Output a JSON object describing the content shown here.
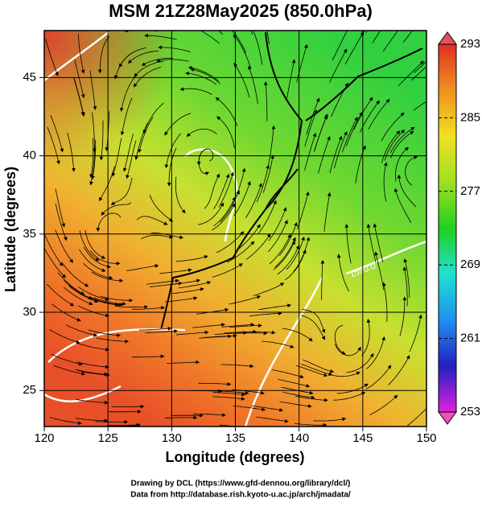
{
  "map": {
    "title": "MSM 21Z28May2025 (850.0hPa)",
    "xlabel": "Longitude (degrees)",
    "ylabel": "Latitude  (degrees)",
    "xlim": [
      120,
      150
    ],
    "ylim": [
      22.7,
      48
    ],
    "xticks": [
      120,
      125,
      130,
      135,
      140,
      145,
      150
    ],
    "yticks": [
      25,
      30,
      35,
      40,
      45
    ],
    "grid": true,
    "colorbar": {
      "lim": [
        253,
        293
      ],
      "ticks": [
        253,
        261,
        269,
        277,
        285,
        293
      ],
      "colors": [
        "#e020e0",
        "#2020c0",
        "#2090f0",
        "#20e0d0",
        "#20d020",
        "#a0e020",
        "#f0e020",
        "#f09020",
        "#e03020"
      ]
    },
    "contour_label": "1590.0",
    "footer": [
      "Drawing by DCL (https://www.gfd-dennou.org/library/dcl/)",
      "Data from http://database.rish.kyoto-u.ac.jp/arch/jmadata/"
    ]
  }
}
